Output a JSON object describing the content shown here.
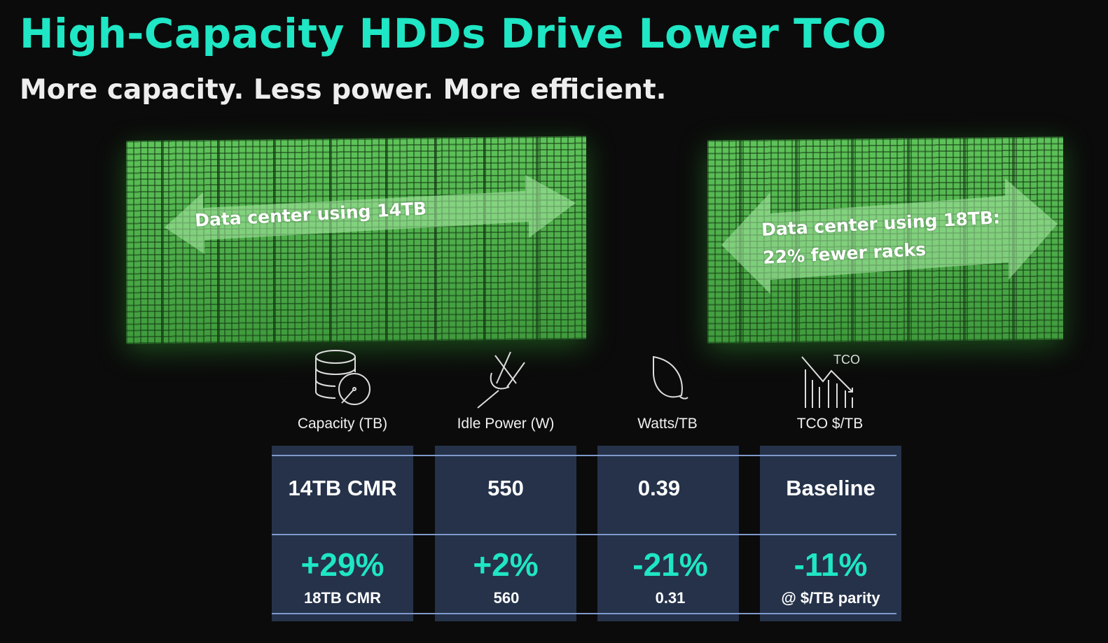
{
  "title": "High-Capacity HDDs Drive Lower TCO",
  "subtitle": "More capacity. Less power. More efficient.",
  "racks": [
    {
      "label_lines": [
        "Data center using 14TB"
      ]
    },
    {
      "label_lines": [
        "Data center using 18TB:",
        "22% fewer racks"
      ]
    }
  ],
  "metrics": [
    {
      "icon": "database-disk-icon",
      "label": "Capacity (TB)",
      "baseline": "14TB CMR",
      "change": "+29%",
      "detail": "18TB CMR"
    },
    {
      "icon": "power-plug-off-icon",
      "label": "Idle Power (W)",
      "baseline": "550",
      "change": "+2%",
      "detail": "560"
    },
    {
      "icon": "leaf-icon",
      "label": "Watts/TB",
      "baseline": "0.39",
      "change": "-21%",
      "detail": "0.31"
    },
    {
      "icon": "tco-trend-down-icon",
      "icon_text": "TCO",
      "label": "TCO $/TB",
      "baseline": "Baseline",
      "change": "-11%",
      "detail": "@ $/TB parity"
    }
  ],
  "colors": {
    "accent": "#1fe6c4",
    "rack_green": "#4fb04a",
    "cell_bg": "#25324a",
    "background": "#0b0b0b"
  }
}
